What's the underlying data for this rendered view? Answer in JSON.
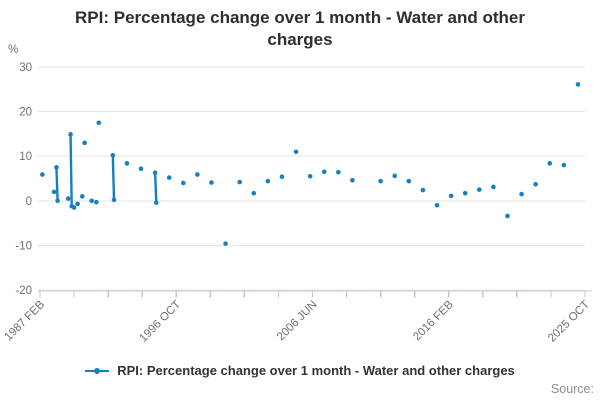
{
  "title": "RPI: Percentage change over 1 month - Water and other charges",
  "y_unit_label": "%",
  "legend": {
    "label": "RPI: Percentage change over 1 month - Water and other charges"
  },
  "source_label": "Source:",
  "colors": {
    "accent": "#157fbf",
    "grid": "#e6e6e6",
    "axis_line": "#b9c8d9",
    "tick_text": "#707070",
    "title_text": "#2e2e2e",
    "source_text": "#8f8f8f"
  },
  "chart_data": {
    "type": "line",
    "style": "sparse monthly line with markers; isolated points render as dots, consecutive months connect into vertical segments",
    "title": "RPI: Percentage change over 1 month - Water and other charges",
    "ylabel": "%",
    "ylim": [
      -20,
      30
    ],
    "y_ticks": [
      30,
      20,
      10,
      0,
      -10,
      -20
    ],
    "grid": "horizontal gridlines only",
    "legend_position": "bottom-center",
    "x_axis": {
      "unit": "months since 1987 FEB",
      "range_months": [
        0,
        464
      ],
      "tick_count": 17,
      "labeled_tick_labels": [
        "1987 FEB",
        "1996 OCT",
        "2006 JUN",
        "2016 FEB",
        "2025 OCT"
      ],
      "labeled_tick_months": [
        0,
        116,
        232,
        348,
        464
      ],
      "label_rotation_deg": -45
    },
    "series": [
      {
        "name": "RPI: Percentage change over 1 month - Water and other charges",
        "color": "#157fbf",
        "points": [
          {
            "date": "1987 APR",
            "m": 2,
            "value": 5.9
          },
          {
            "date": "1988 FEB",
            "m": 12,
            "value": 2.0
          },
          {
            "date": "1988 APR",
            "m": 14,
            "value": 7.5
          },
          {
            "date": "1988 MAY",
            "m": 15,
            "value": 0.0
          },
          {
            "date": "1989 FEB",
            "m": 24,
            "value": 0.5
          },
          {
            "date": "1989 APR",
            "m": 26,
            "value": 14.9
          },
          {
            "date": "1989 MAY",
            "m": 27,
            "value": -1.2
          },
          {
            "date": "1989 JUL",
            "m": 29,
            "value": -1.5
          },
          {
            "date": "1989 OCT",
            "m": 32,
            "value": -0.7
          },
          {
            "date": "1990 FEB",
            "m": 36,
            "value": 1.0
          },
          {
            "date": "1990 APR",
            "m": 38,
            "value": 13.0
          },
          {
            "date": "1990 OCT",
            "m": 44,
            "value": 0.0
          },
          {
            "date": "1991 FEB",
            "m": 48,
            "value": -0.3
          },
          {
            "date": "1991 APR",
            "m": 50,
            "value": 17.5
          },
          {
            "date": "1992 APR",
            "m": 62,
            "value": 10.2
          },
          {
            "date": "1992 MAY",
            "m": 63,
            "value": 0.2
          },
          {
            "date": "1993 APR",
            "m": 74,
            "value": 8.4
          },
          {
            "date": "1994 APR",
            "m": 86,
            "value": 7.2
          },
          {
            "date": "1995 APR",
            "m": 98,
            "value": 6.3
          },
          {
            "date": "1995 MAY",
            "m": 99,
            "value": -0.4
          },
          {
            "date": "1996 APR",
            "m": 110,
            "value": 5.2
          },
          {
            "date": "1997 APR",
            "m": 122,
            "value": 4.0
          },
          {
            "date": "1998 APR",
            "m": 134,
            "value": 5.9
          },
          {
            "date": "1999 APR",
            "m": 146,
            "value": 4.1
          },
          {
            "date": "2000 APR",
            "m": 158,
            "value": -9.6
          },
          {
            "date": "2001 APR",
            "m": 170,
            "value": 4.2
          },
          {
            "date": "2002 APR",
            "m": 182,
            "value": 1.7
          },
          {
            "date": "2003 APR",
            "m": 194,
            "value": 4.4
          },
          {
            "date": "2004 APR",
            "m": 206,
            "value": 5.4
          },
          {
            "date": "2005 APR",
            "m": 218,
            "value": 11.0
          },
          {
            "date": "2006 APR",
            "m": 230,
            "value": 5.5
          },
          {
            "date": "2007 APR",
            "m": 242,
            "value": 6.5
          },
          {
            "date": "2008 APR",
            "m": 254,
            "value": 6.4
          },
          {
            "date": "2009 APR",
            "m": 266,
            "value": 4.6
          },
          {
            "date": "2011 APR",
            "m": 290,
            "value": 4.4
          },
          {
            "date": "2012 APR",
            "m": 302,
            "value": 5.6
          },
          {
            "date": "2013 APR",
            "m": 314,
            "value": 4.4
          },
          {
            "date": "2014 APR",
            "m": 326,
            "value": 2.4
          },
          {
            "date": "2015 APR",
            "m": 338,
            "value": -1.0
          },
          {
            "date": "2016 APR",
            "m": 350,
            "value": 1.1
          },
          {
            "date": "2017 APR",
            "m": 362,
            "value": 1.7
          },
          {
            "date": "2018 APR",
            "m": 374,
            "value": 2.5
          },
          {
            "date": "2019 APR",
            "m": 386,
            "value": 3.1
          },
          {
            "date": "2020 APR",
            "m": 398,
            "value": -3.4
          },
          {
            "date": "2021 APR",
            "m": 410,
            "value": 1.5
          },
          {
            "date": "2022 APR",
            "m": 422,
            "value": 3.7
          },
          {
            "date": "2023 APR",
            "m": 434,
            "value": 8.4
          },
          {
            "date": "2024 APR",
            "m": 446,
            "value": 8.0
          },
          {
            "date": "2025 APR",
            "m": 458,
            "value": 26.1
          }
        ]
      }
    ]
  }
}
